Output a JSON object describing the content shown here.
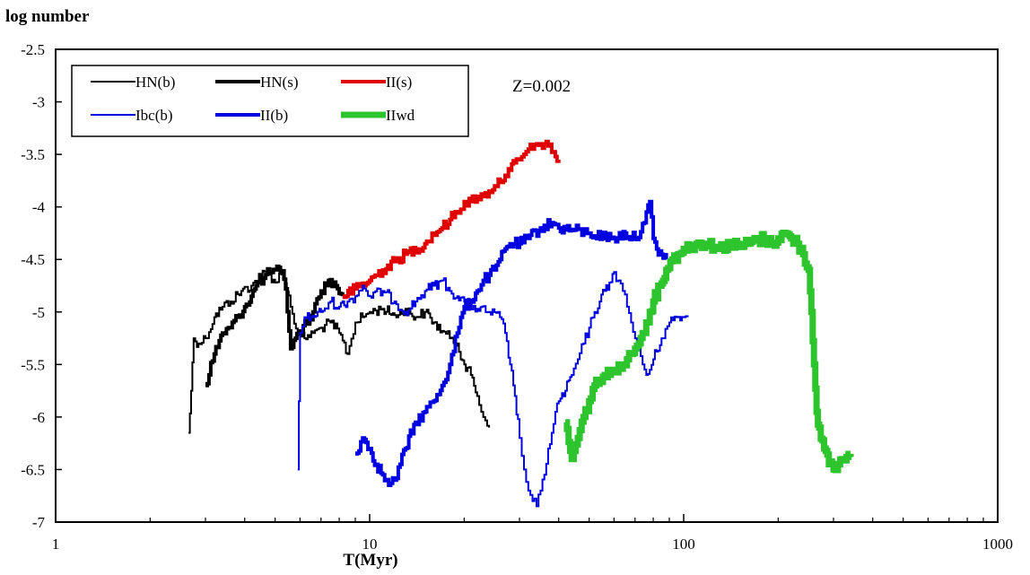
{
  "chart_data": {
    "type": "line",
    "ylabel": "log number",
    "xlabel": "T(Myr)",
    "annotation": "Z=0.002",
    "xscale": "log",
    "xlim": [
      1,
      1000
    ],
    "ylim": [
      -7,
      -2.5
    ],
    "xticks": [
      "1",
      "10",
      "100",
      "1000"
    ],
    "yticks": [
      "-2.5",
      "-3",
      "-3.5",
      "-4",
      "-4.5",
      "-5",
      "-5.5",
      "-6",
      "-6.5",
      "-7"
    ],
    "grid": false,
    "legend_position": "top-left",
    "series": [
      {
        "name": "HN(b)",
        "color": "#000000",
        "weight": "thin",
        "points": [
          [
            2.65,
            -6.15
          ],
          [
            2.7,
            -5.75
          ],
          [
            2.75,
            -5.25
          ],
          [
            2.85,
            -5.3
          ],
          [
            3.0,
            -5.25
          ],
          [
            3.2,
            -5.05
          ],
          [
            3.4,
            -4.95
          ],
          [
            3.6,
            -4.9
          ],
          [
            3.9,
            -4.8
          ],
          [
            4.2,
            -4.75
          ],
          [
            4.5,
            -4.65
          ],
          [
            4.75,
            -4.62
          ],
          [
            5.0,
            -4.72
          ],
          [
            5.3,
            -4.6
          ],
          [
            5.6,
            -4.95
          ],
          [
            5.9,
            -5.2
          ],
          [
            6.2,
            -5.25
          ],
          [
            6.6,
            -5.2
          ],
          [
            7.0,
            -5.15
          ],
          [
            7.5,
            -5.1
          ],
          [
            8.0,
            -5.2
          ],
          [
            8.5,
            -5.4
          ],
          [
            9.0,
            -5.1
          ],
          [
            9.5,
            -5.05
          ],
          [
            10.0,
            -5.0
          ],
          [
            11.0,
            -4.97
          ],
          [
            12.0,
            -5.03
          ],
          [
            13.0,
            -4.97
          ],
          [
            14.0,
            -5.05
          ],
          [
            15.0,
            -5.0
          ],
          [
            16.0,
            -5.1
          ],
          [
            17.0,
            -5.18
          ],
          [
            18.0,
            -5.25
          ],
          [
            19.0,
            -5.3
          ],
          [
            20.0,
            -5.5
          ],
          [
            21.0,
            -5.6
          ],
          [
            22.0,
            -5.8
          ],
          [
            23.0,
            -6.0
          ],
          [
            24.0,
            -6.1
          ]
        ]
      },
      {
        "name": "HN(s)",
        "color": "#000000",
        "weight": "thick",
        "points": [
          [
            3.0,
            -5.7
          ],
          [
            3.2,
            -5.4
          ],
          [
            3.4,
            -5.2
          ],
          [
            3.6,
            -5.15
          ],
          [
            3.8,
            -5.05
          ],
          [
            4.0,
            -4.95
          ],
          [
            4.2,
            -4.85
          ],
          [
            4.4,
            -4.72
          ],
          [
            4.6,
            -4.68
          ],
          [
            4.8,
            -4.62
          ],
          [
            5.0,
            -4.6
          ],
          [
            5.2,
            -4.62
          ],
          [
            5.4,
            -4.78
          ],
          [
            5.6,
            -5.35
          ],
          [
            5.8,
            -5.25
          ],
          [
            6.0,
            -5.2
          ],
          [
            6.3,
            -5.1
          ],
          [
            6.6,
            -5.0
          ],
          [
            7.0,
            -4.8
          ],
          [
            7.4,
            -4.7
          ],
          [
            7.8,
            -4.75
          ],
          [
            8.2,
            -4.85
          ]
        ]
      },
      {
        "name": "II(s)",
        "color": "#e00000",
        "weight": "thick",
        "points": [
          [
            8.2,
            -4.85
          ],
          [
            9.0,
            -4.78
          ],
          [
            10.0,
            -4.7
          ],
          [
            11.0,
            -4.6
          ],
          [
            12.0,
            -4.52
          ],
          [
            13.0,
            -4.45
          ],
          [
            14.0,
            -4.4
          ],
          [
            15.0,
            -4.35
          ],
          [
            16.0,
            -4.25
          ],
          [
            17.0,
            -4.2
          ],
          [
            18.0,
            -4.12
          ],
          [
            19.0,
            -4.05
          ],
          [
            20.0,
            -3.95
          ],
          [
            21.0,
            -3.95
          ],
          [
            22.0,
            -3.9
          ],
          [
            23.0,
            -3.9
          ],
          [
            24.0,
            -3.85
          ],
          [
            25.0,
            -3.8
          ],
          [
            26.0,
            -3.75
          ],
          [
            27.0,
            -3.7
          ],
          [
            28.0,
            -3.65
          ],
          [
            29.0,
            -3.58
          ],
          [
            30.0,
            -3.55
          ],
          [
            31.0,
            -3.5
          ],
          [
            32.0,
            -3.45
          ],
          [
            33.0,
            -3.45
          ],
          [
            34.0,
            -3.4
          ],
          [
            35.0,
            -3.4
          ],
          [
            36.0,
            -3.4
          ],
          [
            37.0,
            -3.42
          ],
          [
            38.0,
            -3.48
          ],
          [
            39.0,
            -3.52
          ],
          [
            40.0,
            -3.55
          ]
        ]
      },
      {
        "name": "Ibc(b)",
        "color": "#0000e0",
        "weight": "thin",
        "points": [
          [
            5.9,
            -6.5
          ],
          [
            6.0,
            -5.2
          ],
          [
            6.2,
            -5.05
          ],
          [
            6.5,
            -5.05
          ],
          [
            7.0,
            -5.0
          ],
          [
            7.5,
            -4.9
          ],
          [
            8.0,
            -4.95
          ],
          [
            8.5,
            -4.9
          ],
          [
            9.0,
            -4.85
          ],
          [
            9.5,
            -4.75
          ],
          [
            10.0,
            -4.85
          ],
          [
            11.0,
            -4.8
          ],
          [
            12.0,
            -4.9
          ],
          [
            13.0,
            -5.0
          ],
          [
            14.0,
            -4.9
          ],
          [
            15.0,
            -4.8
          ],
          [
            16.0,
            -4.75
          ],
          [
            17.0,
            -4.7
          ],
          [
            18.0,
            -4.8
          ],
          [
            19.0,
            -4.85
          ],
          [
            20.0,
            -4.9
          ],
          [
            22.0,
            -4.97
          ],
          [
            24.0,
            -5.0
          ],
          [
            26.0,
            -5.05
          ],
          [
            27.0,
            -5.2
          ],
          [
            28.0,
            -5.5
          ],
          [
            29.0,
            -5.8
          ],
          [
            30.0,
            -6.2
          ],
          [
            31.0,
            -6.5
          ],
          [
            32.0,
            -6.7
          ],
          [
            33.0,
            -6.8
          ],
          [
            34.0,
            -6.85
          ],
          [
            35.0,
            -6.7
          ],
          [
            36.0,
            -6.55
          ],
          [
            37.0,
            -6.3
          ],
          [
            38.0,
            -6.15
          ],
          [
            39.0,
            -5.95
          ],
          [
            40.0,
            -5.85
          ],
          [
            42.0,
            -5.75
          ],
          [
            44.0,
            -5.6
          ],
          [
            46.0,
            -5.45
          ],
          [
            48.0,
            -5.3
          ],
          [
            50.0,
            -5.15
          ],
          [
            52.0,
            -5.0
          ],
          [
            54.0,
            -4.9
          ],
          [
            56.0,
            -4.8
          ],
          [
            58.0,
            -4.72
          ],
          [
            60.0,
            -4.62
          ],
          [
            62.0,
            -4.7
          ],
          [
            64.0,
            -4.8
          ],
          [
            66.0,
            -4.95
          ],
          [
            68.0,
            -5.1
          ],
          [
            70.0,
            -5.25
          ],
          [
            72.0,
            -5.35
          ],
          [
            74.0,
            -5.5
          ],
          [
            76.0,
            -5.6
          ],
          [
            78.0,
            -5.55
          ],
          [
            80.0,
            -5.45
          ],
          [
            85.0,
            -5.25
          ],
          [
            90.0,
            -5.1
          ],
          [
            95.0,
            -5.05
          ],
          [
            100.0,
            -5.05
          ],
          [
            103.0,
            -5.05
          ]
        ]
      },
      {
        "name": "II(b)",
        "color": "#0000e0",
        "weight": "thick",
        "points": [
          [
            9.0,
            -6.35
          ],
          [
            9.5,
            -6.2
          ],
          [
            10.0,
            -6.3
          ],
          [
            10.5,
            -6.45
          ],
          [
            11.0,
            -6.55
          ],
          [
            11.5,
            -6.65
          ],
          [
            12.0,
            -6.6
          ],
          [
            12.5,
            -6.45
          ],
          [
            13.0,
            -6.3
          ],
          [
            14.0,
            -6.05
          ],
          [
            15.0,
            -5.95
          ],
          [
            16.0,
            -5.85
          ],
          [
            17.0,
            -5.7
          ],
          [
            18.0,
            -5.5
          ],
          [
            19.0,
            -5.2
          ],
          [
            20.0,
            -4.95
          ],
          [
            21.0,
            -4.9
          ],
          [
            22.0,
            -4.8
          ],
          [
            23.0,
            -4.7
          ],
          [
            24.0,
            -4.65
          ],
          [
            25.0,
            -4.6
          ],
          [
            26.0,
            -4.5
          ],
          [
            27.0,
            -4.4
          ],
          [
            28.0,
            -4.35
          ],
          [
            30.0,
            -4.35
          ],
          [
            32.0,
            -4.3
          ],
          [
            35.0,
            -4.2
          ],
          [
            38.0,
            -4.15
          ],
          [
            40.0,
            -4.2
          ],
          [
            45.0,
            -4.22
          ],
          [
            50.0,
            -4.25
          ],
          [
            55.0,
            -4.28
          ],
          [
            60.0,
            -4.3
          ],
          [
            65.0,
            -4.25
          ],
          [
            70.0,
            -4.3
          ],
          [
            75.0,
            -4.15
          ],
          [
            78.0,
            -3.95
          ],
          [
            80.0,
            -4.3
          ],
          [
            82.0,
            -4.4
          ],
          [
            85.0,
            -4.45
          ],
          [
            88.0,
            -4.5
          ]
        ]
      },
      {
        "name": "IIwd",
        "color": "#2ec42e",
        "weight": "thicker",
        "points": [
          [
            42.0,
            -6.05
          ],
          [
            44.0,
            -6.4
          ],
          [
            46.0,
            -6.2
          ],
          [
            48.0,
            -6.0
          ],
          [
            50.0,
            -5.85
          ],
          [
            52.0,
            -5.7
          ],
          [
            54.0,
            -5.65
          ],
          [
            56.0,
            -5.6
          ],
          [
            58.0,
            -5.6
          ],
          [
            60.0,
            -5.55
          ],
          [
            62.0,
            -5.5
          ],
          [
            64.0,
            -5.5
          ],
          [
            66.0,
            -5.45
          ],
          [
            68.0,
            -5.4
          ],
          [
            70.0,
            -5.35
          ],
          [
            72.0,
            -5.3
          ],
          [
            74.0,
            -5.2
          ],
          [
            76.0,
            -5.1
          ],
          [
            78.0,
            -5.0
          ],
          [
            80.0,
            -4.9
          ],
          [
            84.0,
            -4.75
          ],
          [
            88.0,
            -4.6
          ],
          [
            92.0,
            -4.5
          ],
          [
            96.0,
            -4.45
          ],
          [
            100.0,
            -4.4
          ],
          [
            110.0,
            -4.35
          ],
          [
            120.0,
            -4.35
          ],
          [
            130.0,
            -4.4
          ],
          [
            140.0,
            -4.35
          ],
          [
            150.0,
            -4.38
          ],
          [
            160.0,
            -4.35
          ],
          [
            170.0,
            -4.32
          ],
          [
            180.0,
            -4.3
          ],
          [
            190.0,
            -4.35
          ],
          [
            200.0,
            -4.3
          ],
          [
            210.0,
            -4.25
          ],
          [
            220.0,
            -4.3
          ],
          [
            230.0,
            -4.35
          ],
          [
            240.0,
            -4.45
          ],
          [
            250.0,
            -4.6
          ],
          [
            255.0,
            -5.0
          ],
          [
            260.0,
            -5.5
          ],
          [
            265.0,
            -5.95
          ],
          [
            270.0,
            -6.1
          ],
          [
            280.0,
            -6.3
          ],
          [
            290.0,
            -6.45
          ],
          [
            300.0,
            -6.5
          ],
          [
            310.0,
            -6.45
          ],
          [
            320.0,
            -6.4
          ],
          [
            330.0,
            -6.38
          ],
          [
            340.0,
            -6.35
          ]
        ]
      }
    ],
    "legend": [
      {
        "series": 0,
        "label": "HN(b)"
      },
      {
        "series": 1,
        "label": "HN(s)"
      },
      {
        "series": 2,
        "label": "II(s)"
      },
      {
        "series": 3,
        "label": "Ibc(b)"
      },
      {
        "series": 4,
        "label": "II(b)"
      },
      {
        "series": 5,
        "label": "IIwd"
      }
    ]
  }
}
